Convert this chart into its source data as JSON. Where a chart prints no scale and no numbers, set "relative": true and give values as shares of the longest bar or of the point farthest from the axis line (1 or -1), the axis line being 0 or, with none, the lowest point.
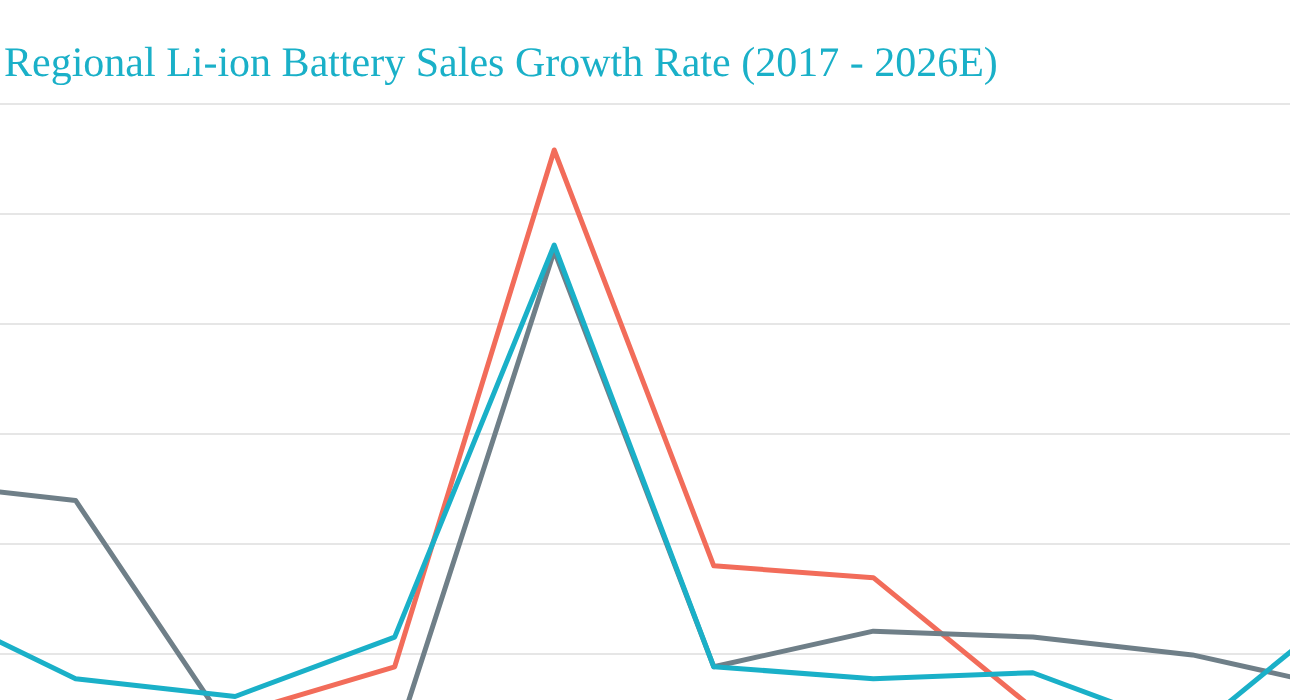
{
  "chart_data": {
    "type": "line",
    "title": "Regional Li-ion Battery Sales  Growth Rate (2017 - 2026E)",
    "relative": true,
    "grid": "y",
    "marker": "none",
    "line_style": "solid",
    "categories": [
      null,
      null,
      null,
      null,
      null,
      null,
      null,
      null,
      null,
      null
    ],
    "series": [
      {
        "color": "#f26c5a",
        "values": [
          null,
          null,
          0.05,
          0.13,
          1,
          0.3,
          0.28,
          0.06,
          null,
          null
        ]
      },
      {
        "color": "#6f7f88",
        "values": [
          0.44,
          0.41,
          0.01,
          0,
          0.83,
          0.13,
          0.19,
          0.18,
          0.15,
          0.09
        ]
      },
      {
        "color": "#1ab0c8",
        "values": [
          0.24,
          0.11,
          0.08,
          0.18,
          0.84,
          0.13,
          0.11,
          0.12,
          0.02,
          0.24
        ]
      }
    ]
  }
}
